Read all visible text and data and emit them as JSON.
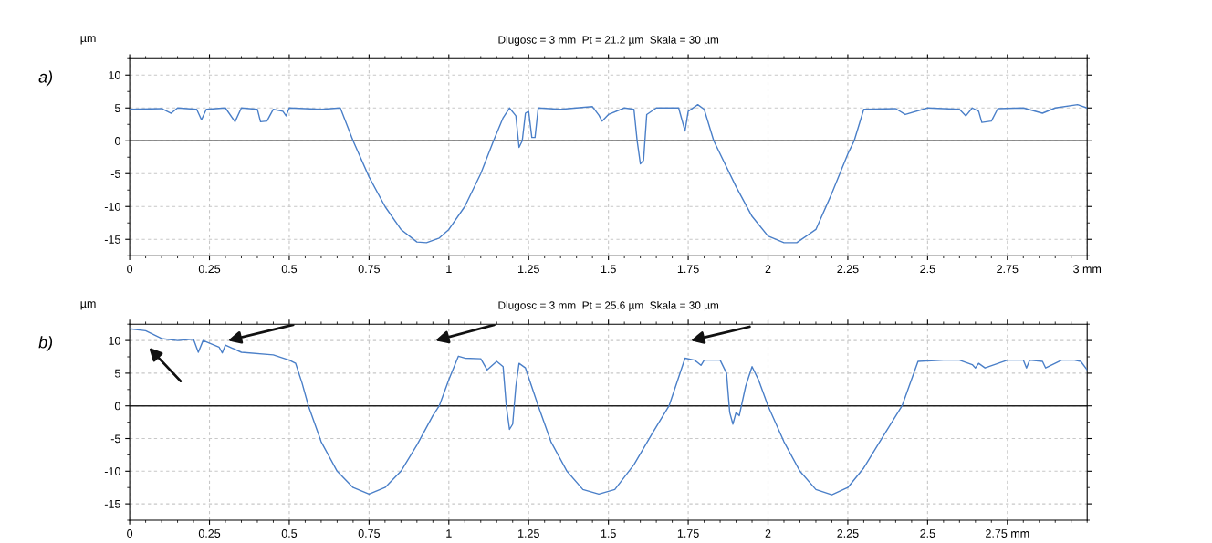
{
  "chart_data": [
    {
      "type": "line",
      "title": "Dlugosc = 3 mm  Pt = 21.2 µm  Skala = 30 µm",
      "ylabel": "µm",
      "annotations": [
        "a)"
      ],
      "series": [
        {
          "color": "#4a7fc8",
          "x": [
            0,
            0.1,
            0.13,
            0.15,
            0.21,
            0.225,
            0.24,
            0.3,
            0.33,
            0.35,
            0.4,
            0.41,
            0.43,
            0.45,
            0.48,
            0.49,
            0.5,
            0.6,
            0.66,
            0.68,
            0.7,
            0.75,
            0.8,
            0.85,
            0.9,
            0.93,
            0.97,
            1.0,
            1.05,
            1.1,
            1.14,
            1.17,
            1.19,
            1.21,
            1.22,
            1.23,
            1.24,
            1.25,
            1.26,
            1.27,
            1.28,
            1.35,
            1.45,
            1.47,
            1.48,
            1.5,
            1.55,
            1.58,
            1.59,
            1.6,
            1.61,
            1.62,
            1.65,
            1.72,
            1.74,
            1.75,
            1.78,
            1.8,
            1.83,
            1.9,
            1.95,
            2.0,
            2.05,
            2.09,
            2.15,
            2.2,
            2.25,
            2.27,
            2.3,
            2.4,
            2.43,
            2.5,
            2.6,
            2.62,
            2.64,
            2.66,
            2.67,
            2.7,
            2.72,
            2.8,
            2.86,
            2.9,
            2.97,
            3.0
          ],
          "values": [
            4.8,
            4.9,
            4.2,
            5.0,
            4.8,
            3.2,
            4.8,
            5.0,
            2.9,
            5.0,
            4.8,
            2.9,
            3.0,
            4.8,
            4.5,
            3.8,
            5.0,
            4.8,
            5.0,
            2.5,
            0,
            -5.5,
            -10,
            -13.5,
            -15.4,
            -15.5,
            -14.8,
            -13.5,
            -10,
            -5,
            0,
            3.5,
            5.0,
            3.8,
            -1.0,
            0,
            4.2,
            4.5,
            0.5,
            0.5,
            5.0,
            4.8,
            5.2,
            3.9,
            3.0,
            4.0,
            5.0,
            4.8,
            0,
            -3.5,
            -3.0,
            4.0,
            5.0,
            5.0,
            1.5,
            4.5,
            5.5,
            4.8,
            0,
            -7,
            -11.5,
            -14.5,
            -15.5,
            -15.5,
            -13.5,
            -8,
            -2,
            0,
            4.8,
            4.9,
            4.0,
            5.0,
            4.8,
            3.8,
            5.0,
            4.5,
            2.8,
            3.0,
            4.9,
            5.0,
            4.2,
            5.0,
            5.5,
            5.0
          ]
        }
      ],
      "xlim": [
        0,
        3
      ],
      "ylim": [
        -17.5,
        12.5
      ],
      "xticks": [
        0,
        0.25,
        0.5,
        0.75,
        1,
        1.25,
        1.5,
        1.75,
        2,
        2.25,
        2.5,
        2.75,
        {
          "value": 3,
          "label": "3 mm"
        }
      ],
      "yticks": [
        -15,
        -10,
        -5,
        0,
        5,
        10
      ],
      "ref_lines": [
        {
          "axis": "y",
          "value": 0,
          "color": "#222222"
        }
      ],
      "grid": true,
      "marker": "none",
      "line_style": "solid",
      "legend": false
    },
    {
      "type": "line",
      "title": "Dlugosc = 3 mm  Pt = 25.6 µm  Skala = 30 µm",
      "ylabel": "µm",
      "annotations": [
        "b)"
      ],
      "series": [
        {
          "color": "#4a7fc8",
          "x": [
            0,
            0.05,
            0.1,
            0.15,
            0.2,
            0.215,
            0.23,
            0.28,
            0.29,
            0.3,
            0.35,
            0.45,
            0.5,
            0.52,
            0.54,
            0.56,
            0.6,
            0.65,
            0.7,
            0.75,
            0.8,
            0.85,
            0.9,
            0.95,
            0.97,
            1.0,
            1.03,
            1.05,
            1.1,
            1.12,
            1.15,
            1.17,
            1.18,
            1.19,
            1.2,
            1.21,
            1.22,
            1.24,
            1.28,
            1.32,
            1.37,
            1.42,
            1.47,
            1.52,
            1.58,
            1.64,
            1.69,
            1.74,
            1.77,
            1.79,
            1.8,
            1.85,
            1.87,
            1.88,
            1.89,
            1.9,
            1.91,
            1.93,
            1.94,
            1.95,
            1.97,
            2.0,
            2.05,
            2.1,
            2.15,
            2.2,
            2.25,
            2.3,
            2.35,
            2.42,
            2.47,
            2.55,
            2.6,
            2.64,
            2.65,
            2.66,
            2.68,
            2.75,
            2.8,
            2.81,
            2.82,
            2.86,
            2.87,
            2.92,
            2.96,
            2.98,
            3.0
          ],
          "values": [
            11.8,
            11.5,
            10.3,
            10.0,
            10.2,
            8.2,
            10.0,
            9.0,
            8.1,
            9.3,
            8.2,
            7.8,
            7.0,
            6.5,
            3.5,
            0,
            -5.5,
            -10,
            -12.5,
            -13.5,
            -12.5,
            -10,
            -6,
            -1.5,
            0,
            4,
            7.6,
            7.3,
            7.2,
            5.5,
            6.8,
            6.0,
            0,
            -3.6,
            -2.8,
            3.0,
            6.5,
            5.8,
            0,
            -5.5,
            -10,
            -12.8,
            -13.5,
            -12.8,
            -9,
            -4,
            0,
            7.3,
            7.0,
            6.2,
            7.0,
            7.0,
            5.0,
            -1.0,
            -2.8,
            -1.0,
            -1.5,
            3.0,
            4.5,
            6.0,
            4.0,
            0,
            -5.5,
            -10,
            -12.8,
            -13.6,
            -12.5,
            -9.5,
            -5.5,
            0,
            6.8,
            7.0,
            7.0,
            6.3,
            5.8,
            6.5,
            5.8,
            7.0,
            7.0,
            5.8,
            7.0,
            6.8,
            5.8,
            7.0,
            7.0,
            6.8,
            5.5
          ]
        }
      ],
      "xlim": [
        0,
        3
      ],
      "ylim": [
        -17.5,
        12.5
      ],
      "xticks": [
        0,
        0.25,
        0.5,
        0.75,
        1,
        1.25,
        1.5,
        1.75,
        2,
        2.25,
        2.5,
        {
          "value": 2.75,
          "label": "2.75 mm"
        }
      ],
      "yticks": [
        -15,
        -10,
        -5,
        0,
        5,
        10
      ],
      "ref_lines": [
        {
          "axis": "y",
          "value": 0,
          "color": "#222222"
        }
      ],
      "grid": true,
      "marker": "none",
      "line_style": "solid",
      "legend": false
    }
  ]
}
